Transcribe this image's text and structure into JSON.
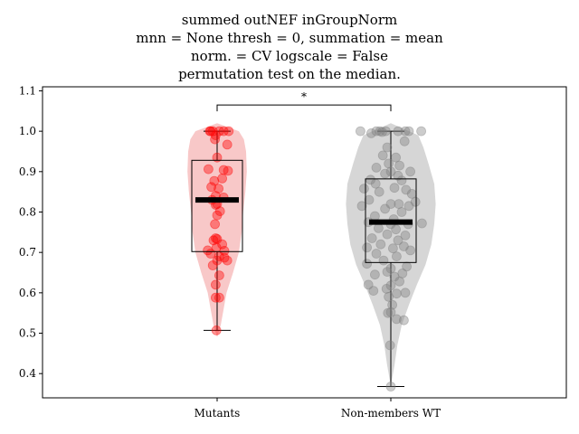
{
  "chart_data": {
    "type": "violin",
    "title_lines": [
      "summed outNEF inGroupNorm",
      "mnn = None thresh = 0, summation = mean",
      "norm. = CV logscale = False",
      "permutation test on the median."
    ],
    "xlabel": "",
    "ylabel": "",
    "categories": [
      "Mutants",
      "Non-members WT"
    ],
    "ylim": [
      0.34,
      1.11
    ],
    "yticks": [
      0.4,
      0.5,
      0.6,
      0.7,
      0.8,
      0.9,
      1.0,
      1.1
    ],
    "ytick_labels": [
      "0.4",
      "0.5",
      "0.6",
      "0.7",
      "0.8",
      "0.9",
      "1.0",
      "1.1"
    ],
    "significance": {
      "label": "*",
      "between": [
        "Mutants",
        "Non-members WT"
      ],
      "y": 1.065
    },
    "series": [
      {
        "category": "Mutants",
        "violin_color": "#f8c8c8",
        "point_color": "#ff0000",
        "median": 0.83,
        "q1": 0.702,
        "q3": 0.928,
        "whisker_low": 0.507,
        "whisker_high": 1.0,
        "violin_profile": [
          [
            0.49,
            0.0
          ],
          [
            0.52,
            0.05
          ],
          [
            0.56,
            0.09
          ],
          [
            0.6,
            0.13
          ],
          [
            0.65,
            0.22
          ],
          [
            0.7,
            0.3
          ],
          [
            0.75,
            0.34
          ],
          [
            0.8,
            0.36
          ],
          [
            0.85,
            0.39
          ],
          [
            0.9,
            0.41
          ],
          [
            0.95,
            0.4
          ],
          [
            0.98,
            0.37
          ],
          [
            1.0,
            0.3
          ],
          [
            1.02,
            0.0
          ]
        ],
        "points": [
          [
            -0.1,
            1.0
          ],
          [
            -0.09,
            1.0
          ],
          [
            -0.06,
            1.0
          ],
          [
            -0.02,
            0.99
          ],
          [
            0.03,
            1.0
          ],
          [
            0.09,
            1.0
          ],
          [
            0.16,
            1.0
          ],
          [
            -0.03,
            0.98
          ],
          [
            0.14,
            0.967
          ],
          [
            0.0,
            0.935
          ],
          [
            -0.12,
            0.906
          ],
          [
            0.09,
            0.904
          ],
          [
            0.15,
            0.902
          ],
          [
            0.07,
            0.883
          ],
          [
            -0.04,
            0.877
          ],
          [
            -0.08,
            0.862
          ],
          [
            0.02,
            0.858
          ],
          [
            -0.02,
            0.84
          ],
          [
            0.09,
            0.836
          ],
          [
            -0.07,
            0.83
          ],
          [
            0.0,
            0.82
          ],
          [
            -0.02,
            0.818
          ],
          [
            0.04,
            0.802
          ],
          [
            0.0,
            0.792
          ],
          [
            -0.03,
            0.77
          ],
          [
            -0.02,
            0.735
          ],
          [
            0.0,
            0.733
          ],
          [
            -0.05,
            0.73
          ],
          [
            0.07,
            0.72
          ],
          [
            -0.01,
            0.712
          ],
          [
            -0.13,
            0.705
          ],
          [
            0.1,
            0.704
          ],
          [
            -0.09,
            0.697
          ],
          [
            0.03,
            0.69
          ],
          [
            0.1,
            0.687
          ],
          [
            0.14,
            0.68
          ],
          [
            0.0,
            0.68
          ],
          [
            -0.06,
            0.668
          ],
          [
            0.03,
            0.643
          ],
          [
            -0.02,
            0.62
          ],
          [
            -0.02,
            0.588
          ],
          [
            0.03,
            0.588
          ],
          [
            -0.01,
            0.507
          ]
        ]
      },
      {
        "category": "Non-members WT",
        "violin_color": "#d6d6d6",
        "point_color": "#808080",
        "median": 0.775,
        "q1": 0.675,
        "q3": 0.882,
        "whisker_low": 0.368,
        "whisker_high": 1.0,
        "violin_profile": [
          [
            0.37,
            0.0
          ],
          [
            0.42,
            0.05
          ],
          [
            0.47,
            0.09
          ],
          [
            0.52,
            0.15
          ],
          [
            0.57,
            0.25
          ],
          [
            0.62,
            0.36
          ],
          [
            0.67,
            0.48
          ],
          [
            0.72,
            0.56
          ],
          [
            0.77,
            0.6
          ],
          [
            0.82,
            0.62
          ],
          [
            0.87,
            0.6
          ],
          [
            0.92,
            0.52
          ],
          [
            0.96,
            0.45
          ],
          [
            0.99,
            0.38
          ],
          [
            1.02,
            0.0
          ]
        ],
        "points": [
          [
            -0.42,
            1.0
          ],
          [
            -0.27,
            0.995
          ],
          [
            -0.2,
            1.0
          ],
          [
            -0.15,
            1.0
          ],
          [
            -0.07,
            1.0
          ],
          [
            0.1,
            1.0
          ],
          [
            0.2,
            1.0
          ],
          [
            0.25,
            1.0
          ],
          [
            0.42,
            1.0
          ],
          [
            -0.12,
            0.998
          ],
          [
            0.19,
            0.975
          ],
          [
            -0.05,
            0.96
          ],
          [
            -0.11,
            0.94
          ],
          [
            0.07,
            0.935
          ],
          [
            -0.03,
            0.92
          ],
          [
            0.12,
            0.915
          ],
          [
            -0.2,
            0.91
          ],
          [
            0.0,
            0.9
          ],
          [
            -0.08,
            0.895
          ],
          [
            0.1,
            0.89
          ],
          [
            0.27,
            0.9
          ],
          [
            -0.28,
            0.88
          ],
          [
            0.15,
            0.878
          ],
          [
            -0.21,
            0.87
          ],
          [
            0.05,
            0.86
          ],
          [
            -0.37,
            0.858
          ],
          [
            0.21,
            0.855
          ],
          [
            -0.16,
            0.85
          ],
          [
            0.29,
            0.845
          ],
          [
            -0.3,
            0.83
          ],
          [
            0.0,
            0.82
          ],
          [
            0.11,
            0.82
          ],
          [
            0.25,
            0.815
          ],
          [
            -0.4,
            0.815
          ],
          [
            -0.08,
            0.808
          ],
          [
            0.34,
            0.825
          ],
          [
            0.15,
            0.8
          ],
          [
            -0.22,
            0.79
          ],
          [
            0.04,
            0.782
          ],
          [
            -0.31,
            0.775
          ],
          [
            0.0,
            0.77
          ],
          [
            0.24,
            0.77
          ],
          [
            0.43,
            0.772
          ],
          [
            -0.17,
            0.76
          ],
          [
            0.07,
            0.757
          ],
          [
            -0.05,
            0.745
          ],
          [
            0.2,
            0.742
          ],
          [
            -0.26,
            0.735
          ],
          [
            0.1,
            0.73
          ],
          [
            -0.14,
            0.72
          ],
          [
            0.18,
            0.715
          ],
          [
            -0.33,
            0.712
          ],
          [
            0.03,
            0.71
          ],
          [
            0.27,
            0.705
          ],
          [
            -0.2,
            0.697
          ],
          [
            0.08,
            0.69
          ],
          [
            -0.1,
            0.68
          ],
          [
            -0.33,
            0.672
          ],
          [
            0.22,
            0.665
          ],
          [
            0.0,
            0.66
          ],
          [
            -0.05,
            0.652
          ],
          [
            0.16,
            0.648
          ],
          [
            -0.22,
            0.645
          ],
          [
            0.05,
            0.64
          ],
          [
            0.12,
            0.628
          ],
          [
            -0.31,
            0.62
          ],
          [
            0.0,
            0.618
          ],
          [
            -0.06,
            0.61
          ],
          [
            0.2,
            0.6
          ],
          [
            -0.24,
            0.605
          ],
          [
            0.08,
            0.598
          ],
          [
            -0.03,
            0.59
          ],
          [
            0.02,
            0.57
          ],
          [
            -0.04,
            0.55
          ],
          [
            0.0,
            0.552
          ],
          [
            0.08,
            0.535
          ],
          [
            0.18,
            0.532
          ],
          [
            -0.01,
            0.47
          ],
          [
            0.0,
            0.368
          ]
        ]
      }
    ]
  }
}
